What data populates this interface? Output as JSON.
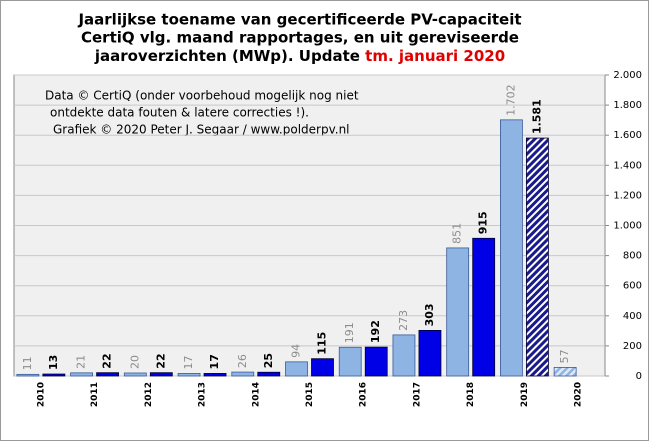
{
  "chart_data": {
    "type": "bar",
    "title_lines": [
      "Jaarlijkse toename van gecertificeerde PV-capaciteit",
      "CertiQ vlg. maand rapportages, en uit gereviseerde",
      "jaaroverzichten (MWp). Update "
    ],
    "title_highlight": "tm. januari 2020",
    "annotation_lines": [
      "Data © CertiQ (onder voorbehoud mogelijk nog niet",
      "ontdekte data fouten & latere correcties !).",
      "Grafiek © 2020 Peter J. Segaar / www.polderpv.nl"
    ],
    "categories": [
      "2010",
      "2011",
      "2012",
      "2013",
      "2014",
      "2015",
      "2016",
      "2017",
      "2018",
      "2019",
      "2020"
    ],
    "series": [
      {
        "color": "#8db4e2",
        "label_color": "#8c8c8c",
        "values": [
          11,
          21,
          20,
          17,
          26,
          94,
          191,
          273,
          851,
          1702,
          57
        ],
        "value_labels": [
          "11",
          "21",
          "20",
          "17",
          "26",
          "94",
          "191",
          "273",
          "851",
          "1.702",
          "57"
        ],
        "hatched": [
          false,
          false,
          false,
          false,
          false,
          false,
          false,
          false,
          false,
          false,
          true
        ]
      },
      {
        "color": "#0000e6",
        "label_color": "#000000",
        "values": [
          13,
          22,
          22,
          17,
          25,
          115,
          192,
          303,
          915,
          1581,
          null
        ],
        "value_labels": [
          "13",
          "22",
          "22",
          "17",
          "25",
          "115",
          "192",
          "303",
          "915",
          "1.581",
          null
        ],
        "hatched": [
          false,
          false,
          false,
          false,
          false,
          false,
          false,
          false,
          false,
          true,
          false
        ]
      }
    ],
    "ylim": [
      0,
      2000
    ],
    "yticks": [
      0,
      200,
      400,
      600,
      800,
      {
        "value": 1000,
        "label": "1.000"
      },
      {
        "value": 1200,
        "label": "1.200"
      },
      {
        "value": 1400,
        "label": "1.400"
      },
      {
        "value": 1600,
        "label": "1.600"
      },
      {
        "value": 1800,
        "label": "1.800"
      },
      {
        "value": 2000,
        "label": "2.000"
      }
    ],
    "grid": true
  }
}
